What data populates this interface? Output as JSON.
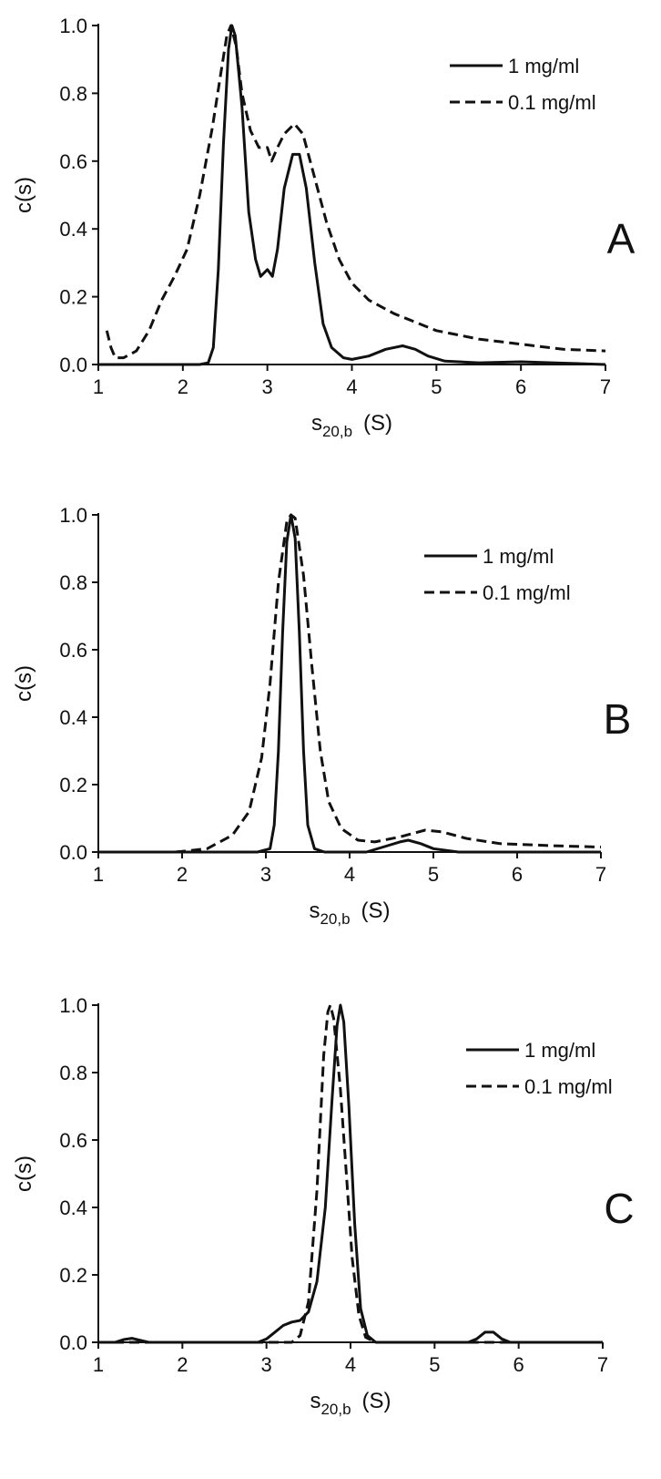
{
  "figure": {
    "colors": {
      "ink": "#111111",
      "background": "#ffffff"
    }
  },
  "chart_data": [
    {
      "type": "line",
      "panel_label": "A",
      "ylabel": "c(s)",
      "xlabel_main": "s",
      "xlabel_sub": "20,b",
      "xlabel_unit": "(S)",
      "xlim": [
        1,
        7
      ],
      "ylim": [
        0,
        1.0
      ],
      "xticks": [
        1,
        2,
        3,
        4,
        5,
        6,
        7
      ],
      "yticks": [
        0.0,
        0.2,
        0.4,
        0.6,
        0.8,
        1.0
      ],
      "ytick_labels": [
        "0.0",
        "0.2",
        "0.4",
        "0.6",
        "0.8",
        "1.0"
      ],
      "grid": false,
      "legend_position": "top-right",
      "series": [
        {
          "name": "1 mg/ml",
          "style": "solid",
          "points": [
            [
              1.0,
              0
            ],
            [
              2.0,
              0
            ],
            [
              2.2,
              0
            ],
            [
              2.3,
              0.005
            ],
            [
              2.36,
              0.05
            ],
            [
              2.42,
              0.28
            ],
            [
              2.48,
              0.65
            ],
            [
              2.54,
              0.93
            ],
            [
              2.58,
              1.0
            ],
            [
              2.62,
              0.97
            ],
            [
              2.7,
              0.76
            ],
            [
              2.78,
              0.45
            ],
            [
              2.86,
              0.31
            ],
            [
              2.92,
              0.26
            ],
            [
              3.0,
              0.28
            ],
            [
              3.06,
              0.26
            ],
            [
              3.12,
              0.34
            ],
            [
              3.2,
              0.52
            ],
            [
              3.3,
              0.62
            ],
            [
              3.38,
              0.62
            ],
            [
              3.46,
              0.52
            ],
            [
              3.56,
              0.3
            ],
            [
              3.66,
              0.12
            ],
            [
              3.76,
              0.05
            ],
            [
              3.9,
              0.02
            ],
            [
              4.0,
              0.015
            ],
            [
              4.2,
              0.025
            ],
            [
              4.4,
              0.045
            ],
            [
              4.6,
              0.055
            ],
            [
              4.75,
              0.045
            ],
            [
              4.9,
              0.025
            ],
            [
              5.1,
              0.01
            ],
            [
              5.5,
              0.005
            ],
            [
              6.0,
              0.008
            ],
            [
              6.5,
              0.004
            ],
            [
              7.0,
              0.0
            ]
          ]
        },
        {
          "name": "0.1 mg/ml",
          "style": "dashed",
          "points": [
            [
              1.1,
              0.1
            ],
            [
              1.15,
              0.05
            ],
            [
              1.2,
              0.02
            ],
            [
              1.3,
              0.02
            ],
            [
              1.45,
              0.04
            ],
            [
              1.6,
              0.1
            ],
            [
              1.75,
              0.19
            ],
            [
              1.9,
              0.26
            ],
            [
              2.05,
              0.34
            ],
            [
              2.2,
              0.5
            ],
            [
              2.35,
              0.7
            ],
            [
              2.45,
              0.86
            ],
            [
              2.52,
              0.97
            ],
            [
              2.57,
              1.0
            ],
            [
              2.63,
              0.94
            ],
            [
              2.7,
              0.8
            ],
            [
              2.8,
              0.69
            ],
            [
              2.9,
              0.64
            ],
            [
              3.0,
              0.64
            ],
            [
              3.05,
              0.6
            ],
            [
              3.12,
              0.64
            ],
            [
              3.2,
              0.68
            ],
            [
              3.32,
              0.71
            ],
            [
              3.42,
              0.68
            ],
            [
              3.55,
              0.56
            ],
            [
              3.7,
              0.42
            ],
            [
              3.85,
              0.31
            ],
            [
              4.0,
              0.24
            ],
            [
              4.2,
              0.19
            ],
            [
              4.5,
              0.15
            ],
            [
              5.0,
              0.1
            ],
            [
              5.5,
              0.075
            ],
            [
              6.0,
              0.06
            ],
            [
              6.5,
              0.045
            ],
            [
              7.0,
              0.04
            ]
          ]
        }
      ]
    },
    {
      "type": "line",
      "panel_label": "B",
      "ylabel": "c(s)",
      "xlabel_main": "s",
      "xlabel_sub": "20,b",
      "xlabel_unit": "(S)",
      "xlim": [
        1,
        7
      ],
      "ylim": [
        0,
        1.0
      ],
      "xticks": [
        1,
        2,
        3,
        4,
        5,
        6,
        7
      ],
      "yticks": [
        0.0,
        0.2,
        0.4,
        0.6,
        0.8,
        1.0
      ],
      "ytick_labels": [
        "0.0",
        "0.2",
        "0.4",
        "0.6",
        "0.8",
        "1.0"
      ],
      "grid": false,
      "legend_position": "top-right",
      "series": [
        {
          "name": "1 mg/ml",
          "style": "solid",
          "points": [
            [
              1.0,
              0
            ],
            [
              2.9,
              0
            ],
            [
              3.05,
              0.01
            ],
            [
              3.1,
              0.08
            ],
            [
              3.15,
              0.3
            ],
            [
              3.2,
              0.65
            ],
            [
              3.25,
              0.92
            ],
            [
              3.3,
              1.0
            ],
            [
              3.35,
              0.93
            ],
            [
              3.4,
              0.65
            ],
            [
              3.45,
              0.3
            ],
            [
              3.5,
              0.08
            ],
            [
              3.58,
              0.01
            ],
            [
              3.7,
              0
            ],
            [
              4.2,
              0
            ],
            [
              4.4,
              0.015
            ],
            [
              4.6,
              0.03
            ],
            [
              4.7,
              0.035
            ],
            [
              4.85,
              0.025
            ],
            [
              5.0,
              0.01
            ],
            [
              5.3,
              0.0
            ],
            [
              7.0,
              0.0
            ]
          ]
        },
        {
          "name": "0.1 mg/ml",
          "style": "dashed",
          "points": [
            [
              1.0,
              0
            ],
            [
              1.9,
              0
            ],
            [
              2.0,
              0.002
            ],
            [
              2.3,
              0.01
            ],
            [
              2.6,
              0.05
            ],
            [
              2.8,
              0.12
            ],
            [
              2.95,
              0.28
            ],
            [
              3.05,
              0.5
            ],
            [
              3.15,
              0.8
            ],
            [
              3.25,
              0.98
            ],
            [
              3.3,
              1.0
            ],
            [
              3.35,
              0.99
            ],
            [
              3.45,
              0.82
            ],
            [
              3.55,
              0.55
            ],
            [
              3.65,
              0.3
            ],
            [
              3.75,
              0.15
            ],
            [
              3.9,
              0.07
            ],
            [
              4.1,
              0.035
            ],
            [
              4.3,
              0.03
            ],
            [
              4.6,
              0.045
            ],
            [
              4.9,
              0.065
            ],
            [
              5.1,
              0.06
            ],
            [
              5.4,
              0.04
            ],
            [
              5.8,
              0.025
            ],
            [
              6.5,
              0.018
            ],
            [
              7.0,
              0.015
            ]
          ]
        }
      ]
    },
    {
      "type": "line",
      "panel_label": "C",
      "ylabel": "c(s)",
      "xlabel_main": "s",
      "xlabel_sub": "20,b",
      "xlabel_unit": "(S)",
      "xlim": [
        1,
        7
      ],
      "ylim": [
        0,
        1.0
      ],
      "xticks": [
        1,
        2,
        3,
        4,
        5,
        6,
        7
      ],
      "yticks": [
        0.0,
        0.2,
        0.4,
        0.6,
        0.8,
        1.0
      ],
      "ytick_labels": [
        "0.0",
        "0.2",
        "0.4",
        "0.6",
        "0.8",
        "1.0"
      ],
      "grid": false,
      "legend_position": "top-right",
      "series": [
        {
          "name": "1 mg/ml",
          "style": "solid",
          "points": [
            [
              1.0,
              0
            ],
            [
              1.2,
              0
            ],
            [
              1.3,
              0.008
            ],
            [
              1.4,
              0.012
            ],
            [
              1.5,
              0.006
            ],
            [
              1.6,
              0
            ],
            [
              2.9,
              0
            ],
            [
              3.0,
              0.01
            ],
            [
              3.1,
              0.03
            ],
            [
              3.2,
              0.05
            ],
            [
              3.3,
              0.06
            ],
            [
              3.4,
              0.065
            ],
            [
              3.5,
              0.09
            ],
            [
              3.6,
              0.18
            ],
            [
              3.7,
              0.4
            ],
            [
              3.78,
              0.72
            ],
            [
              3.84,
              0.94
            ],
            [
              3.88,
              1.0
            ],
            [
              3.92,
              0.95
            ],
            [
              3.98,
              0.7
            ],
            [
              4.05,
              0.35
            ],
            [
              4.12,
              0.1
            ],
            [
              4.2,
              0.02
            ],
            [
              4.3,
              0
            ],
            [
              5.4,
              0
            ],
            [
              5.5,
              0.01
            ],
            [
              5.6,
              0.03
            ],
            [
              5.7,
              0.03
            ],
            [
              5.8,
              0.01
            ],
            [
              5.9,
              0
            ],
            [
              7.0,
              0
            ]
          ]
        },
        {
          "name": "0.1 mg/ml",
          "style": "dashed",
          "points": [
            [
              1.0,
              0
            ],
            [
              3.3,
              0
            ],
            [
              3.4,
              0.02
            ],
            [
              3.5,
              0.12
            ],
            [
              3.6,
              0.45
            ],
            [
              3.68,
              0.85
            ],
            [
              3.73,
              0.98
            ],
            [
              3.76,
              1.0
            ],
            [
              3.8,
              0.96
            ],
            [
              3.88,
              0.75
            ],
            [
              3.95,
              0.5
            ],
            [
              4.02,
              0.25
            ],
            [
              4.1,
              0.08
            ],
            [
              4.18,
              0.015
            ],
            [
              4.3,
              0
            ],
            [
              7.0,
              0
            ]
          ]
        }
      ]
    }
  ]
}
